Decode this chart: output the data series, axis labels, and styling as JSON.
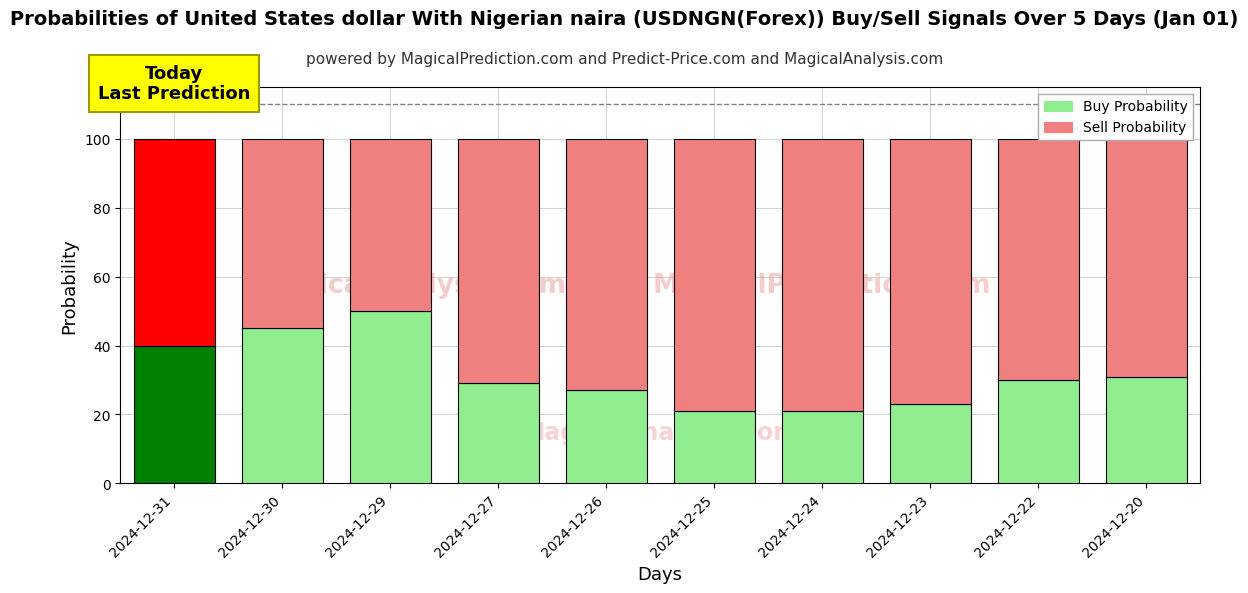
{
  "title": "Probabilities of United States dollar With Nigerian naira (USDNGN(Forex)) Buy/Sell Signals Over 5 Days (Jan 01)",
  "subtitle": "powered by MagicalPrediction.com and Predict-Price.com and MagicalAnalysis.com",
  "xlabel": "Days",
  "ylabel": "Probability",
  "categories": [
    "2024-12-31",
    "2024-12-30",
    "2024-12-29",
    "2024-12-27",
    "2024-12-26",
    "2024-12-25",
    "2024-12-24",
    "2024-12-23",
    "2024-12-22",
    "2024-12-20"
  ],
  "buy_values": [
    40,
    45,
    50,
    29,
    27,
    21,
    21,
    23,
    30,
    31
  ],
  "sell_values": [
    60,
    55,
    50,
    71,
    73,
    79,
    79,
    77,
    70,
    69
  ],
  "buy_color_today": "#008000",
  "sell_color_today": "#ff0000",
  "buy_color_rest": "#90ee90",
  "sell_color_rest": "#f08080",
  "bar_edge_color": "#000000",
  "ylim": [
    0,
    115
  ],
  "yticks": [
    0,
    20,
    40,
    60,
    80,
    100
  ],
  "dashed_line_y": 110,
  "annotation_text": "Today\nLast Prediction",
  "annotation_bg": "#ffff00",
  "legend_buy_label": "Buy Probability",
  "legend_sell_label": "Sell Probability",
  "title_fontsize": 14,
  "subtitle_fontsize": 11,
  "label_fontsize": 13,
  "tick_fontsize": 10,
  "watermark_1_text": "MagicalAnalysis.com",
  "watermark_2_text": "MagicalPrediction.com",
  "watermark_3_text": "MagicalAnalysis.com"
}
